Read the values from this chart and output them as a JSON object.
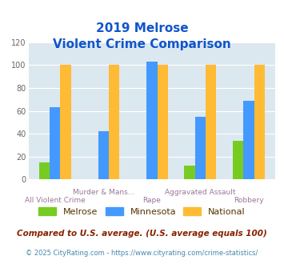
{
  "title_line1": "2019 Melrose",
  "title_line2": "Violent Crime Comparison",
  "categories": [
    "All Violent Crime",
    "Murder & Mans...",
    "Rape",
    "Aggravated Assault",
    "Robbery"
  ],
  "cat_labels_row1": [
    "",
    "Murder & Mans...",
    "",
    "Aggravated Assault",
    ""
  ],
  "cat_labels_row2": [
    "All Violent Crime",
    "",
    "Rape",
    "",
    "Robbery"
  ],
  "melrose": [
    15,
    0,
    0,
    12,
    34
  ],
  "minnesota": [
    63,
    42,
    103,
    55,
    69
  ],
  "national": [
    100,
    100,
    100,
    100,
    100
  ],
  "melrose_color": "#77cc22",
  "minnesota_color": "#4499ff",
  "national_color": "#ffbb33",
  "bg_color": "#dce8f0",
  "title_color": "#1155cc",
  "ylabel_max": 120,
  "yticks": [
    0,
    20,
    40,
    60,
    80,
    100,
    120
  ],
  "legend_labels": [
    "Melrose",
    "Minnesota",
    "National"
  ],
  "footnote1": "Compared to U.S. average. (U.S. average equals 100)",
  "footnote2": "© 2025 CityRating.com - https://www.cityrating.com/crime-statistics/",
  "footnote1_color": "#882200",
  "footnote2_color": "#4488aa",
  "legend_text_color": "#553300"
}
